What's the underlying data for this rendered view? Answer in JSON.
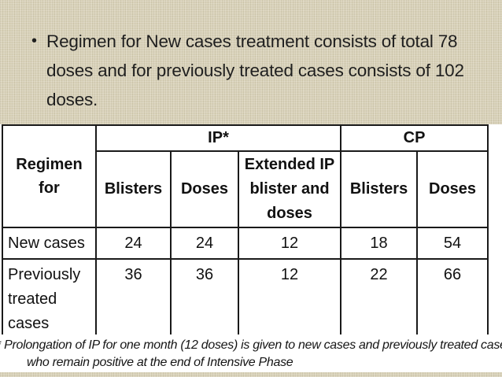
{
  "slide": {
    "bullet_glyph": "•",
    "bullet_text": "Regimen for New cases treatment consists of total 78 doses and for previously treated cases consists of 102 doses."
  },
  "table": {
    "corner_header": "Regimen for",
    "group_headers": [
      {
        "label": "IP*",
        "colspan": 3
      },
      {
        "label": "CP",
        "colspan": 2
      }
    ],
    "sub_headers": [
      "Blisters",
      "Doses",
      "Extended IP blister and doses",
      "Blisters",
      "Doses"
    ],
    "rows": [
      {
        "label": "New cases",
        "values": [
          "24",
          "24",
          "12",
          "18",
          "54"
        ]
      },
      {
        "label": "Previously treated cases",
        "values": [
          "36",
          "36",
          "12",
          "22",
          "66"
        ]
      }
    ]
  },
  "footnote": {
    "line1": "* Prolongation of IP for one month (12 doses) is given to new cases and previously treated cases",
    "line2": "who remain positive at the end of Intensive Phase"
  },
  "colors": {
    "slide_background": "#d8d1b8",
    "table_background": "#ffffff",
    "border": "#1a1a1a",
    "text": "#1f1f1f"
  }
}
